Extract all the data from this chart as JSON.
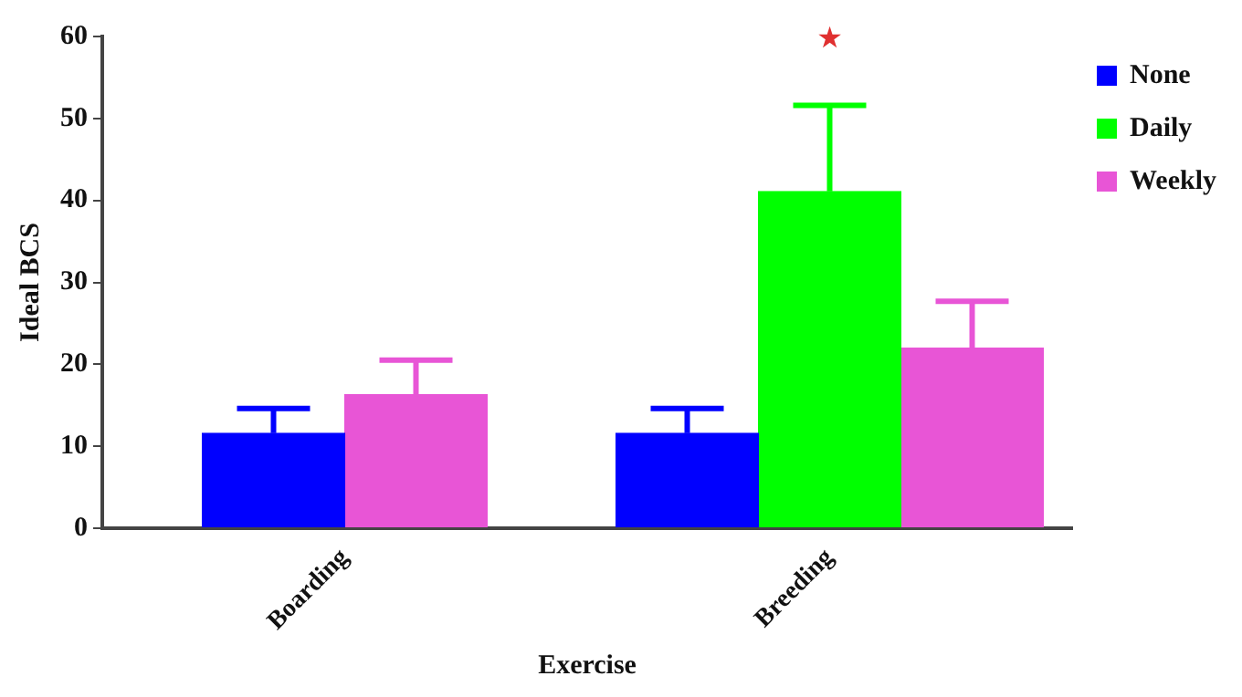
{
  "chart_data": {
    "type": "bar",
    "xlabel": "Exercise",
    "ylabel": "Ideal BCS",
    "categories": [
      "Boarding",
      "Breeding"
    ],
    "series": [
      {
        "name": "None",
        "color": "#0000ff",
        "values": [
          11.6,
          11.6
        ],
        "errors": [
          [
            11.6,
            14.6
          ],
          [
            11.6,
            14.6
          ]
        ]
      },
      {
        "name": "Daily",
        "color": "#00ff00",
        "values": [
          null,
          41.1
        ],
        "errors": [
          null,
          [
            41.1,
            51.6
          ]
        ]
      },
      {
        "name": "Weekly",
        "color": "#e855d6",
        "values": [
          16.3,
          22.0
        ],
        "errors": [
          [
            16.3,
            20.5
          ],
          [
            22.0,
            27.7
          ]
        ]
      }
    ],
    "ylim": [
      0,
      60
    ],
    "yticks": [
      0,
      10,
      20,
      30,
      40,
      50,
      60
    ],
    "grid": false,
    "legend": "top right",
    "annotations": [
      "★"
    ]
  }
}
